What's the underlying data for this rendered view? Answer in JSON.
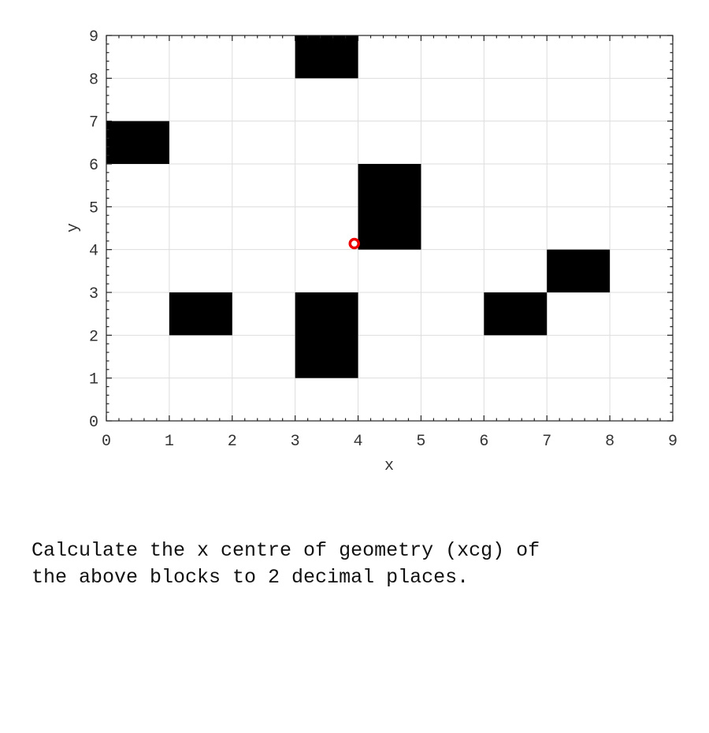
{
  "chart_data": {
    "type": "heatmap",
    "title": "",
    "xlabel": "x",
    "ylabel": "y",
    "xlim": [
      0,
      9
    ],
    "ylim": [
      0,
      9
    ],
    "xticks": [
      "0",
      "1",
      "2",
      "3",
      "4",
      "5",
      "6",
      "7",
      "8",
      "9"
    ],
    "yticks": [
      "0",
      "1",
      "2",
      "3",
      "4",
      "5",
      "6",
      "7",
      "8",
      "9"
    ],
    "grid": true,
    "block_color": "#000000",
    "blocks": [
      {
        "x0": 3,
        "x1": 4,
        "y0": 8,
        "y1": 9
      },
      {
        "x0": 0,
        "x1": 1,
        "y0": 6,
        "y1": 7
      },
      {
        "x0": 4,
        "x1": 5,
        "y0": 4,
        "y1": 6
      },
      {
        "x0": 7,
        "x1": 8,
        "y0": 3,
        "y1": 4
      },
      {
        "x0": 1,
        "x1": 2,
        "y0": 2,
        "y1": 3
      },
      {
        "x0": 6,
        "x1": 7,
        "y0": 2,
        "y1": 3
      },
      {
        "x0": 3,
        "x1": 4,
        "y0": 1,
        "y1": 3
      }
    ],
    "marker": {
      "x": 3.94,
      "y": 4.14,
      "color": "#ee0000",
      "shape": "circle"
    }
  },
  "question": "Calculate the x centre of geometry (xcg) of\nthe above blocks to 2 decimal places."
}
